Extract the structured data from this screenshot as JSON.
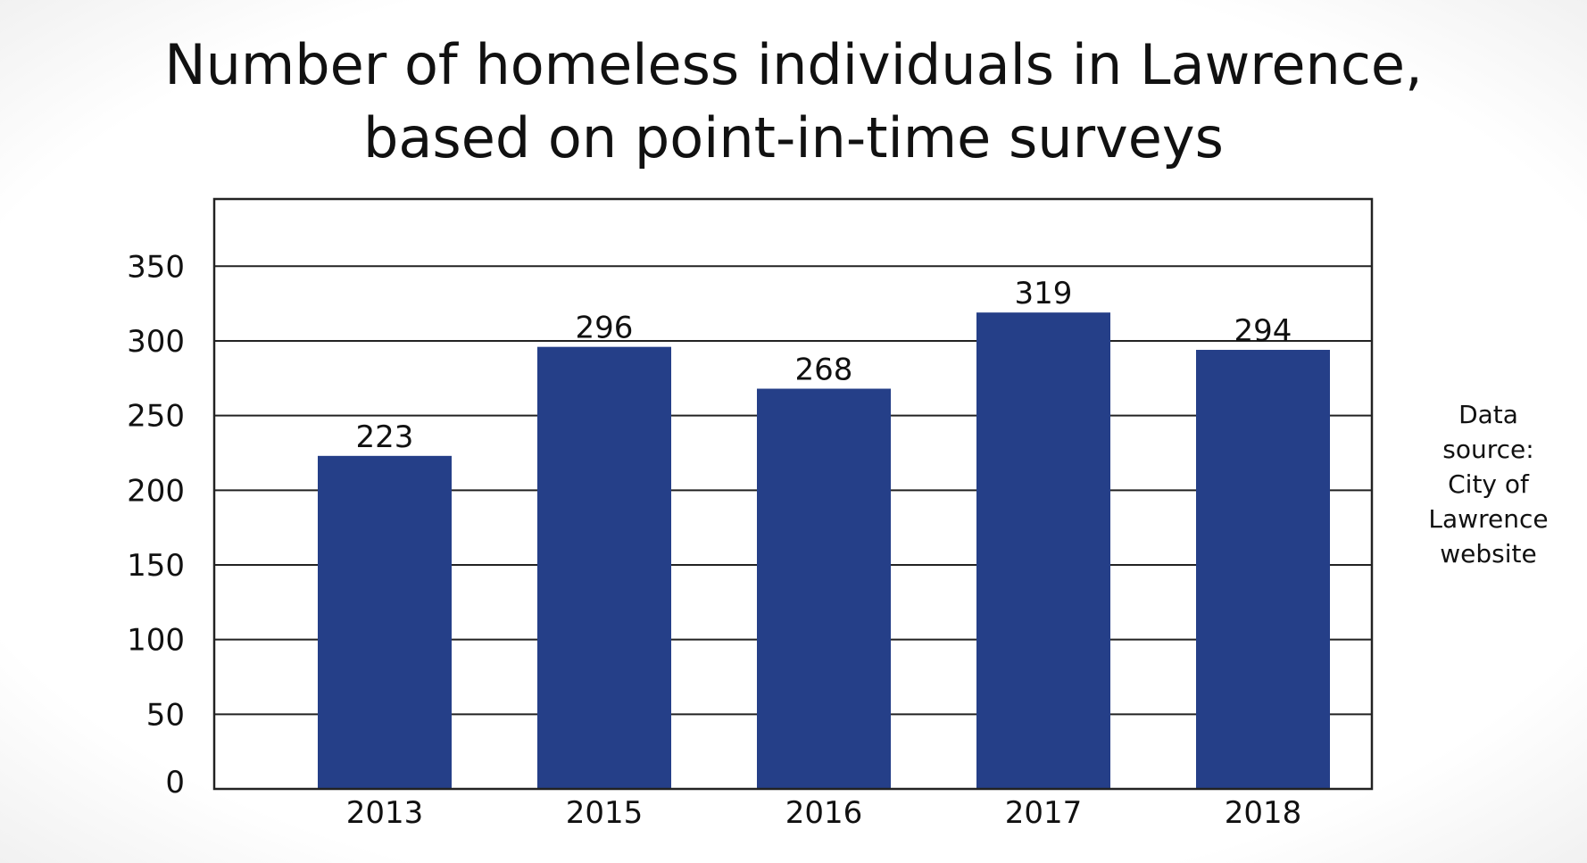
{
  "title": {
    "line1": "Number of homeless individuals in Lawrence,",
    "line2": "based on point-in-time surveys"
  },
  "source_note": {
    "line1": "Data",
    "line2": "source:",
    "line3": "City of",
    "line4": "Lawrence",
    "line5": "website"
  },
  "colors": {
    "bar": "#253f88",
    "grid": "#222222",
    "frame": "#222222",
    "text": "#111111"
  },
  "chart_data": {
    "type": "bar",
    "title": "Number of homeless individuals in Lawrence, based on point-in-time surveys",
    "categories": [
      "2013",
      "2015",
      "2016",
      "2017",
      "2018"
    ],
    "values": [
      223,
      296,
      268,
      319,
      294
    ],
    "data_labels": [
      "223",
      "296",
      "268",
      "319",
      "294"
    ],
    "yticks": [
      0,
      50,
      100,
      150,
      200,
      250,
      300,
      350
    ],
    "ylim": [
      0,
      395
    ],
    "xlabel": "",
    "ylabel": "",
    "grid": true,
    "legend": "none"
  }
}
